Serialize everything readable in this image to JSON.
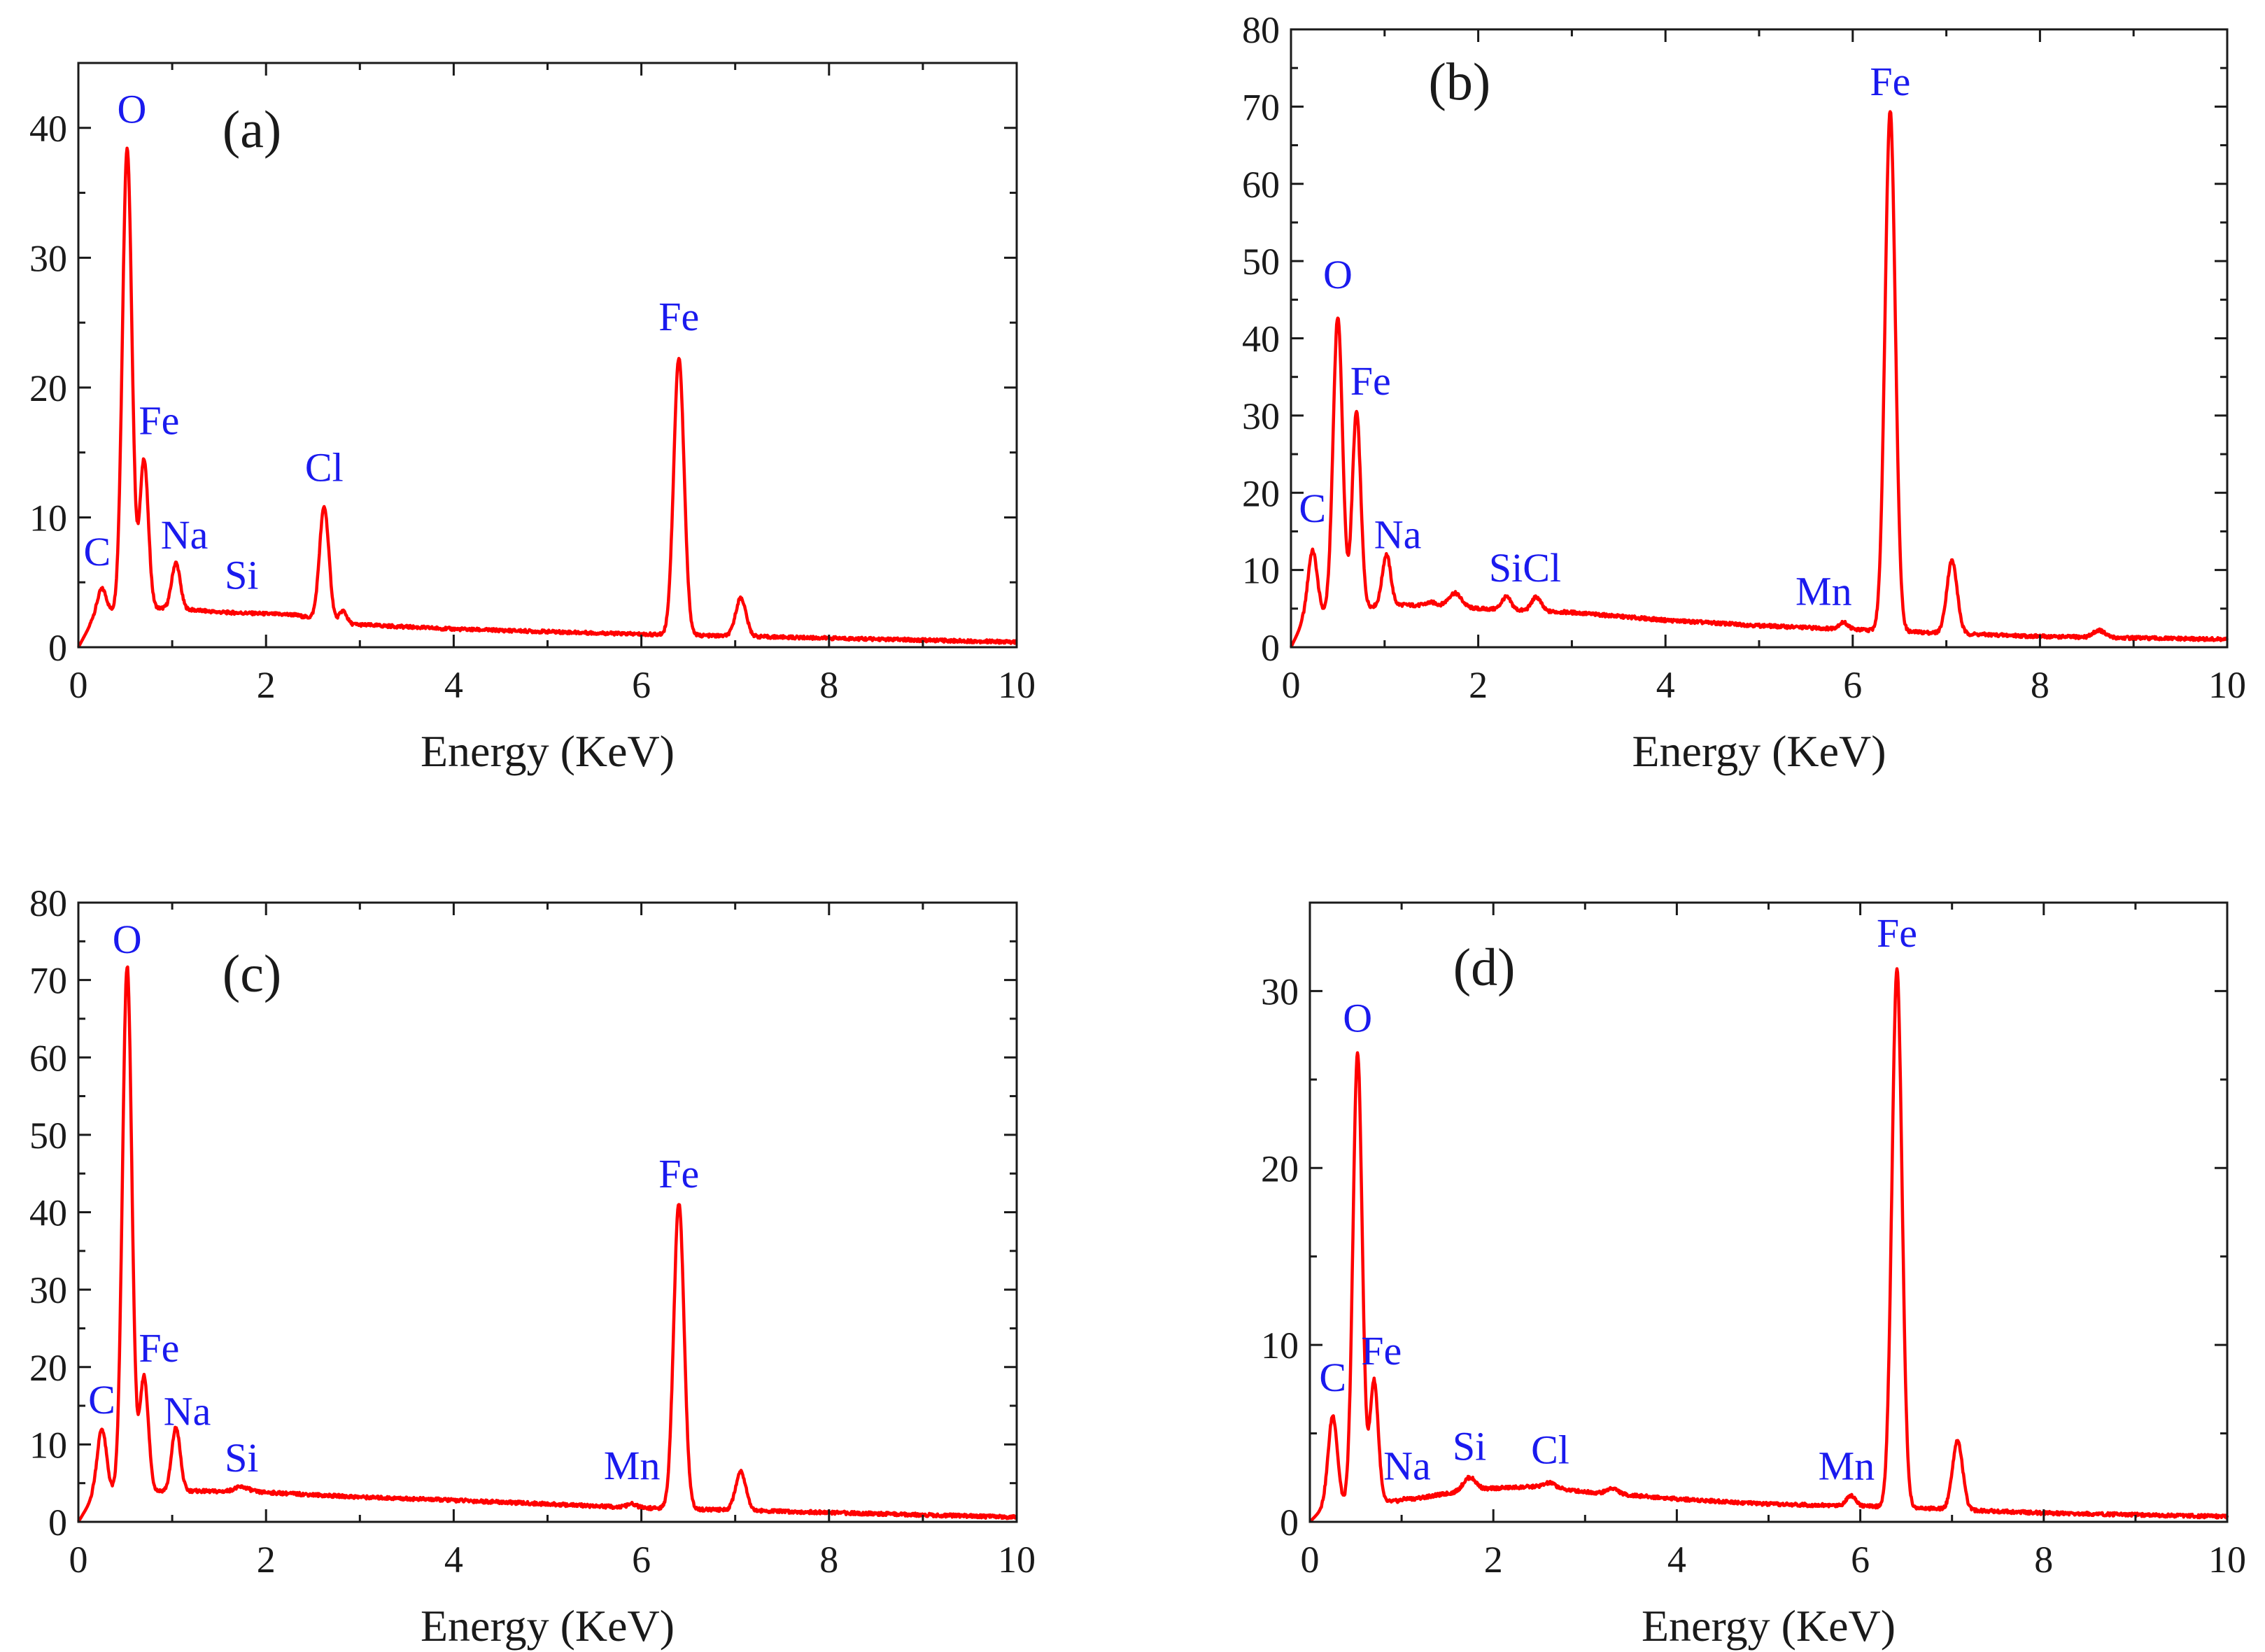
{
  "colors": {
    "line": "#ff0000",
    "label": "#1a1aee",
    "axis": "#1a1a1a"
  },
  "chart_data": [
    {
      "type": "line",
      "panel_label": "(a)",
      "xlabel": "Energy (KeV)",
      "ylabel": "",
      "xlim": [
        0,
        10
      ],
      "ylim": [
        0,
        45
      ],
      "xticks": [
        0,
        2,
        4,
        6,
        8,
        10
      ],
      "yticks": [
        0,
        10,
        20,
        30,
        40
      ],
      "background": [
        [
          0,
          0
        ],
        [
          0.15,
          2
        ],
        [
          0.5,
          3
        ],
        [
          1,
          3
        ],
        [
          1.5,
          2.7
        ],
        [
          2.3,
          2.5
        ],
        [
          2.8,
          1.8
        ],
        [
          4,
          1.4
        ],
        [
          6,
          1
        ],
        [
          8,
          0.7
        ],
        [
          10,
          0.4
        ]
      ],
      "peaks": [
        {
          "label": "C",
          "energy": 0.25,
          "height": 4.5,
          "width": 0.05
        },
        {
          "label": "O",
          "energy": 0.52,
          "height": 38.5,
          "width": 0.05
        },
        {
          "label": "Fe",
          "energy": 0.7,
          "height": 14.5,
          "width": 0.045
        },
        {
          "label": "Na",
          "energy": 1.04,
          "height": 6.5,
          "width": 0.045
        },
        {
          "label": "Si",
          "energy": 1.74,
          "height": 2.5,
          "width": 0.08
        },
        {
          "label": "Cl",
          "energy": 2.62,
          "height": 10.8,
          "width": 0.05
        },
        {
          "label": "",
          "energy": 2.82,
          "height": 2.8,
          "width": 0.04
        },
        {
          "label": "",
          "energy": 5.9,
          "height": 1,
          "width": 0.04
        },
        {
          "label": "Fe",
          "energy": 6.4,
          "height": 22.3,
          "width": 0.055
        },
        {
          "label": "",
          "energy": 7.06,
          "height": 3.8,
          "width": 0.055
        }
      ],
      "labels": [
        {
          "text": "C",
          "x": 0.2,
          "y": 6.3
        },
        {
          "text": "O",
          "x": 0.57,
          "y": 40.4
        },
        {
          "text": "Fe",
          "x": 0.86,
          "y": 16.4
        },
        {
          "text": "Na",
          "x": 1.13,
          "y": 7.6
        },
        {
          "text": "Si",
          "x": 1.74,
          "y": 4.5
        },
        {
          "text": "Cl",
          "x": 2.62,
          "y": 12.8
        },
        {
          "text": "Fe",
          "x": 6.4,
          "y": 24.4
        }
      ]
    },
    {
      "type": "line",
      "panel_label": "(b)",
      "xlabel": "Energy (KeV)",
      "ylabel": "",
      "xlim": [
        0,
        10
      ],
      "ylim": [
        0,
        80
      ],
      "xticks": [
        0,
        2,
        4,
        6,
        8,
        10
      ],
      "yticks": [
        0,
        10,
        20,
        30,
        40,
        50,
        60,
        70,
        80
      ],
      "background": [
        [
          0,
          0
        ],
        [
          0.12,
          3
        ],
        [
          0.5,
          5
        ],
        [
          1.2,
          5.5
        ],
        [
          2,
          5
        ],
        [
          3,
          4.5
        ],
        [
          4,
          3.5
        ],
        [
          5,
          2.8
        ],
        [
          6,
          2.3
        ],
        [
          7,
          1.8
        ],
        [
          8,
          1.4
        ],
        [
          10,
          1
        ]
      ],
      "peaks": [
        {
          "label": "C",
          "energy": 0.23,
          "height": 12.5,
          "width": 0.05
        },
        {
          "label": "O",
          "energy": 0.5,
          "height": 42.8,
          "width": 0.05
        },
        {
          "label": "Fe",
          "energy": 0.7,
          "height": 30.5,
          "width": 0.045
        },
        {
          "label": "Na",
          "energy": 1.02,
          "height": 12,
          "width": 0.045
        },
        {
          "label": "",
          "energy": 1.5,
          "height": 5.8,
          "width": 0.06
        },
        {
          "label": "",
          "energy": 1.75,
          "height": 7,
          "width": 0.07
        },
        {
          "label": "Si",
          "energy": 2.3,
          "height": 6.5,
          "width": 0.05
        },
        {
          "label": "Cl",
          "energy": 2.62,
          "height": 6.5,
          "width": 0.05
        },
        {
          "label": "Mn",
          "energy": 5.9,
          "height": 3.2,
          "width": 0.05
        },
        {
          "label": "Fe",
          "energy": 6.4,
          "height": 69.5,
          "width": 0.055
        },
        {
          "label": "",
          "energy": 7.06,
          "height": 11.2,
          "width": 0.055
        },
        {
          "label": "",
          "energy": 8.63,
          "height": 2.2,
          "width": 0.06
        }
      ],
      "labels": [
        {
          "text": "C",
          "x": 0.23,
          "y": 16.2
        },
        {
          "text": "O",
          "x": 0.5,
          "y": 46.5
        },
        {
          "text": "Fe",
          "x": 0.85,
          "y": 32.7
        },
        {
          "text": "Na",
          "x": 1.14,
          "y": 12.8
        },
        {
          "text": "SiCl",
          "x": 2.5,
          "y": 8.5
        },
        {
          "text": "Mn",
          "x": 5.69,
          "y": 5.5
        },
        {
          "text": "Fe",
          "x": 6.4,
          "y": 71.5
        }
      ]
    },
    {
      "type": "line",
      "panel_label": "(c)",
      "xlabel": "Energy (KeV)",
      "ylabel": "",
      "xlim": [
        0,
        10
      ],
      "ylim": [
        0,
        80
      ],
      "xticks": [
        0,
        2,
        4,
        6,
        8,
        10
      ],
      "yticks": [
        0,
        10,
        20,
        30,
        40,
        50,
        60,
        70,
        80
      ],
      "background": [
        [
          0,
          0
        ],
        [
          0.15,
          3
        ],
        [
          0.5,
          4
        ],
        [
          1.2,
          4
        ],
        [
          2,
          3.8
        ],
        [
          3,
          3.2
        ],
        [
          4,
          2.8
        ],
        [
          5,
          2.3
        ],
        [
          6,
          1.8
        ],
        [
          7,
          1.5
        ],
        [
          8,
          1.2
        ],
        [
          10,
          0.6
        ]
      ],
      "peaks": [
        {
          "label": "C",
          "energy": 0.25,
          "height": 12,
          "width": 0.05
        },
        {
          "label": "O",
          "energy": 0.52,
          "height": 71.8,
          "width": 0.05
        },
        {
          "label": "Fe",
          "energy": 0.7,
          "height": 18.8,
          "width": 0.045
        },
        {
          "label": "Na",
          "energy": 1.04,
          "height": 12.2,
          "width": 0.045
        },
        {
          "label": "Si",
          "energy": 1.74,
          "height": 4.5,
          "width": 0.08
        },
        {
          "label": "Mn",
          "energy": 5.9,
          "height": 2.3,
          "width": 0.05
        },
        {
          "label": "Fe",
          "energy": 6.4,
          "height": 41.2,
          "width": 0.055
        },
        {
          "label": "",
          "energy": 7.06,
          "height": 6.5,
          "width": 0.055
        }
      ],
      "labels": [
        {
          "text": "C",
          "x": 0.25,
          "y": 14
        },
        {
          "text": "O",
          "x": 0.52,
          "y": 73.5
        },
        {
          "text": "Fe",
          "x": 0.86,
          "y": 20.7
        },
        {
          "text": "Na",
          "x": 1.16,
          "y": 12.5
        },
        {
          "text": "Si",
          "x": 1.74,
          "y": 6.5
        },
        {
          "text": "Mn",
          "x": 5.9,
          "y": 5.5
        },
        {
          "text": "Fe",
          "x": 6.4,
          "y": 43.2
        }
      ]
    },
    {
      "type": "line",
      "panel_label": "(d)",
      "xlabel": "Energy (KeV)",
      "ylabel": "",
      "xlim": [
        0,
        10
      ],
      "ylim": [
        0,
        35
      ],
      "xticks": [
        0,
        2,
        4,
        6,
        8,
        10
      ],
      "yticks": [
        0,
        10,
        20,
        30
      ],
      "background": [
        [
          0,
          0
        ],
        [
          0.15,
          0.8
        ],
        [
          0.5,
          1
        ],
        [
          1.0,
          1.2
        ],
        [
          1.5,
          1.6
        ],
        [
          2.0,
          1.9
        ],
        [
          2.5,
          2
        ],
        [
          3,
          1.7
        ],
        [
          4,
          1.3
        ],
        [
          5,
          1.0
        ],
        [
          6,
          0.9
        ],
        [
          7,
          0.7
        ],
        [
          8,
          0.5
        ],
        [
          10,
          0.3
        ]
      ],
      "peaks": [
        {
          "label": "C",
          "energy": 0.25,
          "height": 6,
          "width": 0.05
        },
        {
          "label": "O",
          "energy": 0.52,
          "height": 26.5,
          "width": 0.05
        },
        {
          "label": "Fe",
          "energy": 0.7,
          "height": 8,
          "width": 0.045
        },
        {
          "label": "Na",
          "energy": 1.04,
          "height": 1.3,
          "width": 0.04
        },
        {
          "label": "Si",
          "energy": 1.74,
          "height": 2.5,
          "width": 0.07
        },
        {
          "label": "Cl",
          "energy": 2.62,
          "height": 2.2,
          "width": 0.06
        },
        {
          "label": "",
          "energy": 3.3,
          "height": 1.9,
          "width": 0.06
        },
        {
          "label": "Mn",
          "energy": 5.9,
          "height": 1.5,
          "width": 0.05
        },
        {
          "label": "Fe",
          "energy": 6.4,
          "height": 31.2,
          "width": 0.055
        },
        {
          "label": "",
          "energy": 7.06,
          "height": 4.6,
          "width": 0.055
        }
      ],
      "labels": [
        {
          "text": "C",
          "x": 0.25,
          "y": 7.4
        },
        {
          "text": "O",
          "x": 0.52,
          "y": 27.7
        },
        {
          "text": "Fe",
          "x": 0.78,
          "y": 8.9
        },
        {
          "text": "Na",
          "x": 1.06,
          "y": 2.4
        },
        {
          "text": "Si",
          "x": 1.74,
          "y": 3.5
        },
        {
          "text": "Cl",
          "x": 2.62,
          "y": 3.3
        },
        {
          "text": "Mn",
          "x": 5.85,
          "y": 2.4
        },
        {
          "text": "Fe",
          "x": 6.4,
          "y": 32.5
        }
      ]
    }
  ]
}
